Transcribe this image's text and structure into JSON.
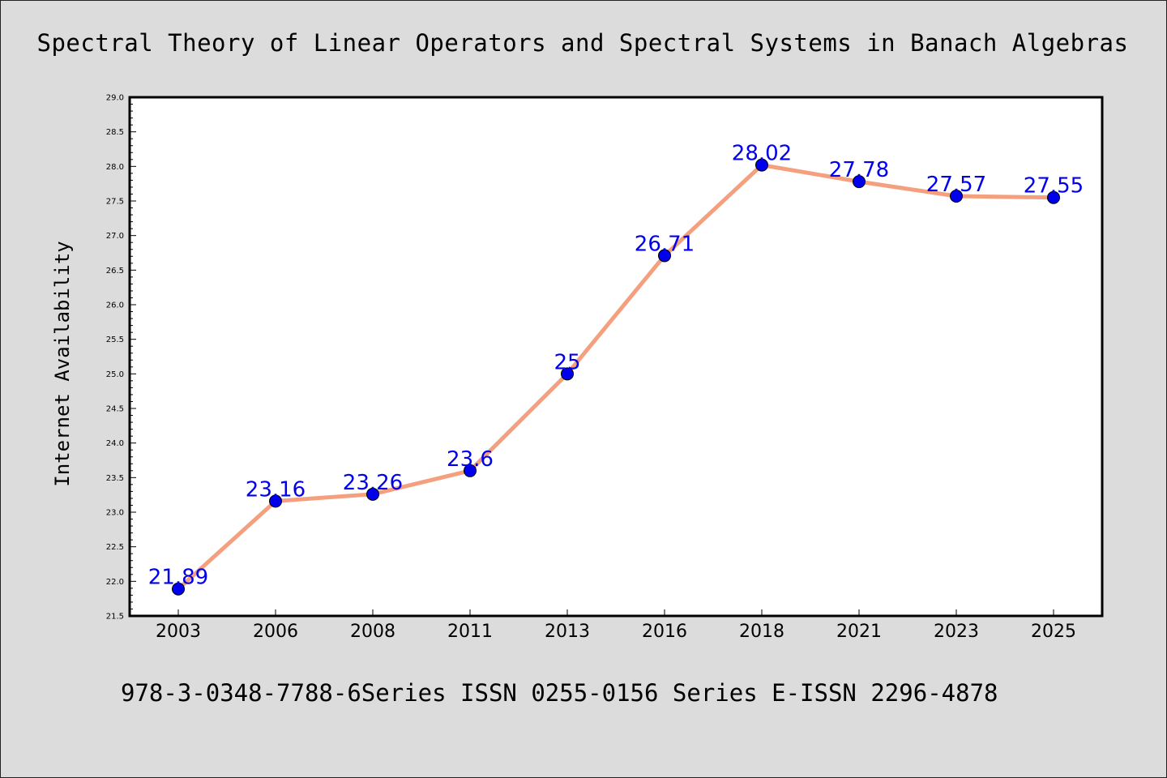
{
  "chart_data": {
    "type": "line",
    "title": "Spectral Theory of Linear Operators and Spectral Systems in Banach Algebras",
    "xlabel": "",
    "ylabel": "Internet Availability",
    "categories": [
      "2003",
      "2006",
      "2008",
      "2011",
      "2013",
      "2016",
      "2018",
      "2021",
      "2023",
      "2025"
    ],
    "series": [
      {
        "values": [
          21.89,
          23.16,
          23.26,
          23.6,
          25,
          26.71,
          28.02,
          27.78,
          27.57,
          27.55
        ],
        "labels": [
          "21.89",
          "23.16",
          "23.26",
          "23.6",
          "25",
          "26.71",
          "28.02",
          "27.78",
          "27.57",
          "27.55"
        ],
        "line_color": "#f4a07f",
        "marker_color": "#0000ee",
        "label_color": "#0000ee"
      }
    ],
    "ylim": [
      21.5,
      29.0
    ],
    "yticks": [
      "21.5",
      "22.0",
      "22.5",
      "23.0",
      "23.5",
      "24.0",
      "24.5",
      "25.0",
      "25.5",
      "26.0",
      "26.5",
      "27.0",
      "27.5",
      "28.0",
      "28.5",
      "29.0"
    ],
    "grid": false,
    "legend": "none"
  },
  "footer": {
    "text": "978-3-0348-7788-6Series ISSN 0255-0156 Series E-ISSN 2296-4878"
  },
  "colors": {
    "background": "#dcdcdc",
    "plot_background": "#ffffff"
  }
}
